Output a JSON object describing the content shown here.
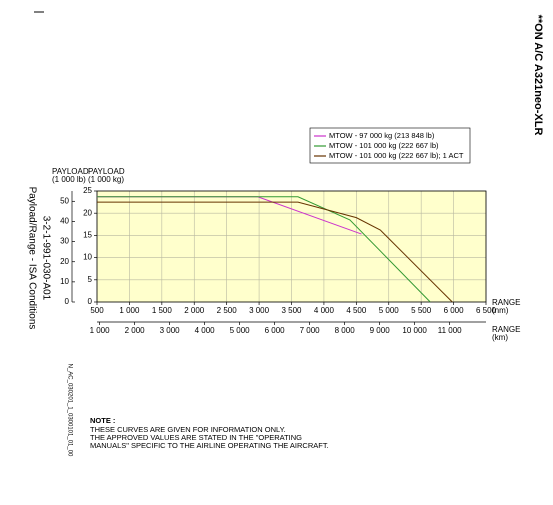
{
  "header": {
    "applicability": "**ON A/C A321neo-XLR"
  },
  "document_code": "N_AC_030201_1_0300101_01_00",
  "note": {
    "title": "NOTE :",
    "lines": [
      "THESE CURVES ARE GIVEN FOR INFORMATION ONLY.",
      "THE APPROVED VALUES ARE STATED IN THE \"OPERATING",
      "MANUALS\" SPECIFIC TO THE AIRLINE OPERATING THE AIRCRAFT."
    ]
  },
  "chart_data": {
    "type": "line",
    "title": "Payload/Range - ISA Conditions",
    "subtitle": "3-2-1-991-030-A01",
    "ylabel": [
      "PAYLOAD",
      "(1 000 kg)"
    ],
    "y2label": [
      "PAYLOAD",
      "(1 000 lb)"
    ],
    "xlabel": [
      "RANGE",
      "(nm)"
    ],
    "x2label": [
      "RANGE",
      "(km)"
    ],
    "xlim": [
      500,
      6500
    ],
    "xticks": [
      500,
      {
        "value": 1000,
        "label": "1 000"
      },
      {
        "value": 1500,
        "label": "1 500"
      },
      {
        "value": 2000,
        "label": "2 000"
      },
      {
        "value": 2500,
        "label": "2 500"
      },
      {
        "value": 3000,
        "label": "3 000"
      },
      {
        "value": 3500,
        "label": "3 500"
      },
      {
        "value": 4000,
        "label": "4 000"
      },
      {
        "value": 4500,
        "label": "4 500"
      },
      {
        "value": 5000,
        "label": "5 000"
      },
      {
        "value": 5500,
        "label": "5 500"
      },
      {
        "value": 6000,
        "label": "6 000"
      },
      {
        "value": 6500,
        "label": "6 500"
      }
    ],
    "x2lim": [
      926,
      12038
    ],
    "x2ticks": [
      {
        "value": 1000,
        "label": "1 000"
      },
      {
        "value": 2000,
        "label": "2 000"
      },
      {
        "value": 3000,
        "label": "3 000"
      },
      {
        "value": 4000,
        "label": "4 000"
      },
      {
        "value": 5000,
        "label": "5 000"
      },
      {
        "value": 6000,
        "label": "6 000"
      },
      {
        "value": 7000,
        "label": "7 000"
      },
      {
        "value": 8000,
        "label": "8 000"
      },
      {
        "value": 9000,
        "label": "9 000"
      },
      {
        "value": 10000,
        "label": "10 000"
      },
      {
        "value": 11000,
        "label": "11 000"
      }
    ],
    "ylim": [
      0,
      25
    ],
    "yticks": [
      0,
      5,
      10,
      15,
      20,
      25
    ],
    "y2lim": [
      0,
      55.12
    ],
    "y2ticks": [
      0,
      10,
      20,
      30,
      40,
      50
    ],
    "grid": true,
    "background": "#ffffcc",
    "series": [
      {
        "name": "MTOW - 97 000 kg (213 848 lb)",
        "color": "#cc33cc",
        "x": [
          500,
          2980,
          4580
        ],
        "values": [
          23.7,
          23.7,
          15.3
        ]
      },
      {
        "name": "MTOW - 101 000 kg (222 667 lb)",
        "color": "#339933",
        "x": [
          500,
          3600,
          4400,
          5640
        ],
        "values": [
          23.7,
          23.7,
          18.5,
          0
        ]
      },
      {
        "name": "MTOW - 101 000 kg (222 667 lb); 1 ACT",
        "color": "#663300",
        "x": [
          500,
          3600,
          4500,
          4870,
          5980
        ],
        "values": [
          22.5,
          22.5,
          19,
          16.2,
          0
        ]
      }
    ]
  }
}
